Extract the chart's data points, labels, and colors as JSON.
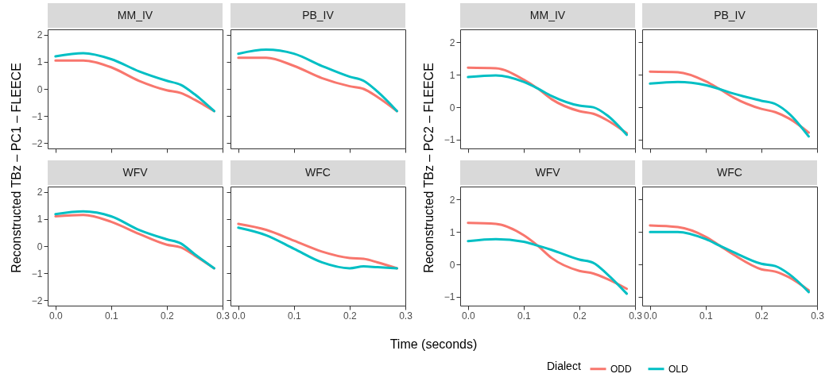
{
  "chart_data": [
    {
      "type": "line",
      "title": "MM_IV",
      "ylabel": "Reconstructed TBz – PC1 – FLEECE",
      "grid": false,
      "tick_labels": "y",
      "xlim": [
        -0.014,
        0.3
      ],
      "ylim": [
        -2.2,
        2.2
      ],
      "xticks": [
        0,
        0.1,
        0.2,
        0.3
      ],
      "yticks": [
        -2,
        -1,
        0,
        1,
        2
      ],
      "x": [
        0,
        0.05,
        0.1,
        0.15,
        0.2,
        0.225,
        0.25,
        0.285
      ],
      "series": [
        {
          "color": "#f8766d",
          "values": [
            1.05,
            1.05,
            0.8,
            0.3,
            -0.05,
            -0.15,
            -0.4,
            -0.82
          ]
        },
        {
          "color": "#00bfc4",
          "values": [
            1.2,
            1.32,
            1.1,
            0.65,
            0.3,
            0.15,
            -0.2,
            -0.82
          ]
        }
      ]
    },
    {
      "type": "line",
      "title": "PB_IV",
      "grid": false,
      "tick_labels": false,
      "xlim": [
        -0.014,
        0.3
      ],
      "ylim": [
        -2.2,
        2.2
      ],
      "xticks": [
        0,
        0.1,
        0.2,
        0.3
      ],
      "yticks": [
        -2,
        -1,
        0,
        1,
        2
      ],
      "x": [
        0,
        0.05,
        0.1,
        0.15,
        0.2,
        0.225,
        0.25,
        0.285
      ],
      "series": [
        {
          "color": "#f8766d",
          "values": [
            1.15,
            1.15,
            0.85,
            0.4,
            0.1,
            0.0,
            -0.3,
            -0.82
          ]
        },
        {
          "color": "#00bfc4",
          "values": [
            1.3,
            1.45,
            1.3,
            0.85,
            0.45,
            0.3,
            -0.1,
            -0.82
          ]
        }
      ]
    },
    {
      "type": "line",
      "title": "WFV",
      "grid": false,
      "xlim": [
        -0.014,
        0.3
      ],
      "ylim": [
        -2.2,
        2.2
      ],
      "xticks": [
        {
          "value": 0,
          "label": "0.0"
        },
        {
          "value": 0.1,
          "label": "0.1"
        },
        {
          "value": 0.2,
          "label": "0.2"
        },
        {
          "value": 0.3,
          "label": "0.3"
        }
      ],
      "yticks": [
        -2,
        -1,
        0,
        1,
        2
      ],
      "x": [
        0,
        0.05,
        0.1,
        0.15,
        0.2,
        0.225,
        0.25,
        0.285
      ],
      "series": [
        {
          "color": "#f8766d",
          "values": [
            1.1,
            1.15,
            0.9,
            0.45,
            0.05,
            -0.05,
            -0.35,
            -0.82
          ]
        },
        {
          "color": "#00bfc4",
          "values": [
            1.18,
            1.28,
            1.1,
            0.6,
            0.25,
            0.1,
            -0.3,
            -0.82
          ]
        }
      ]
    },
    {
      "type": "line",
      "title": "WFC",
      "xlabel": "Time (seconds)",
      "grid": false,
      "tick_labels": "x",
      "xlim": [
        -0.014,
        0.3
      ],
      "ylim": [
        -2.2,
        2.2
      ],
      "xticks": [
        {
          "value": 0,
          "label": "0.0"
        },
        {
          "value": 0.1,
          "label": "0.1"
        },
        {
          "value": 0.2,
          "label": "0.2"
        },
        {
          "value": 0.3,
          "label": "0.3"
        }
      ],
      "yticks": [
        -2,
        -1,
        0,
        1,
        2
      ],
      "x": [
        0,
        0.05,
        0.1,
        0.15,
        0.2,
        0.225,
        0.25,
        0.285
      ],
      "series": [
        {
          "color": "#f8766d",
          "values": [
            0.82,
            0.6,
            0.2,
            -0.2,
            -0.44,
            -0.47,
            -0.6,
            -0.82
          ]
        },
        {
          "color": "#00bfc4",
          "values": [
            0.68,
            0.4,
            -0.1,
            -0.6,
            -0.82,
            -0.75,
            -0.78,
            -0.82
          ]
        }
      ]
    },
    {
      "type": "line",
      "title": "MM_IV",
      "ylabel": "Reconstructed TBz – PC2 – FLEECE",
      "grid": false,
      "tick_labels": "y",
      "xlim": [
        -0.014,
        0.3
      ],
      "ylim": [
        -1.27,
        2.4
      ],
      "xticks": [
        0,
        0.1,
        0.2,
        0.3
      ],
      "yticks": [
        -1,
        0,
        1,
        2
      ],
      "x": [
        0,
        0.05,
        0.1,
        0.125,
        0.15,
        0.2,
        0.225,
        0.25,
        0.285
      ],
      "series": [
        {
          "color": "#f8766d",
          "values": [
            1.22,
            1.2,
            0.85,
            0.58,
            0.25,
            -0.12,
            -0.2,
            -0.4,
            -0.8
          ]
        },
        {
          "color": "#00bfc4",
          "values": [
            0.93,
            0.98,
            0.78,
            0.58,
            0.35,
            0.05,
            0.0,
            -0.25,
            -0.85
          ]
        }
      ]
    },
    {
      "type": "line",
      "title": "PB_IV",
      "grid": false,
      "tick_labels": false,
      "xlim": [
        -0.014,
        0.3
      ],
      "ylim": [
        -1.27,
        2.4
      ],
      "xticks": [
        0,
        0.1,
        0.2,
        0.3
      ],
      "yticks": [
        -1,
        0,
        1,
        2
      ],
      "x": [
        0,
        0.05,
        0.1,
        0.125,
        0.15,
        0.2,
        0.225,
        0.25,
        0.285
      ],
      "series": [
        {
          "color": "#f8766d",
          "values": [
            1.1,
            1.08,
            0.8,
            0.56,
            0.3,
            -0.05,
            -0.15,
            -0.35,
            -0.78
          ]
        },
        {
          "color": "#00bfc4",
          "values": [
            0.73,
            0.78,
            0.68,
            0.56,
            0.42,
            0.2,
            0.1,
            -0.2,
            -0.9
          ]
        }
      ]
    },
    {
      "type": "line",
      "title": "WFV",
      "grid": false,
      "xlim": [
        -0.014,
        0.3
      ],
      "ylim": [
        -1.27,
        2.4
      ],
      "xticks": [
        {
          "value": 0,
          "label": "0.0"
        },
        {
          "value": 0.1,
          "label": "0.1"
        },
        {
          "value": 0.2,
          "label": "0.2"
        },
        {
          "value": 0.3,
          "label": "0.3"
        }
      ],
      "yticks": [
        -1,
        0,
        1,
        2
      ],
      "x": [
        0,
        0.05,
        0.1,
        0.125,
        0.15,
        0.2,
        0.225,
        0.25,
        0.285
      ],
      "series": [
        {
          "color": "#f8766d",
          "values": [
            1.28,
            1.25,
            0.9,
            0.58,
            0.2,
            -0.2,
            -0.28,
            -0.45,
            -0.75
          ]
        },
        {
          "color": "#00bfc4",
          "values": [
            0.72,
            0.78,
            0.7,
            0.58,
            0.45,
            0.15,
            0.05,
            -0.3,
            -0.9
          ]
        }
      ]
    },
    {
      "type": "line",
      "title": "WFC",
      "legend": "bottom",
      "legend_title": "Dialect",
      "grid": false,
      "tick_labels": "x",
      "xlim": [
        -0.014,
        0.3
      ],
      "ylim": [
        -1.27,
        2.4
      ],
      "xticks": [
        {
          "value": 0,
          "label": "0.0"
        },
        {
          "value": 0.1,
          "label": "0.1"
        },
        {
          "value": 0.2,
          "label": "0.2"
        },
        {
          "value": 0.3,
          "label": "0.3"
        }
      ],
      "yticks": [
        -1,
        0,
        1,
        2
      ],
      "x": [
        0,
        0.05,
        0.1,
        0.125,
        0.15,
        0.2,
        0.225,
        0.25,
        0.285
      ],
      "series": [
        {
          "name": "ODD",
          "color": "#f8766d",
          "values": [
            1.2,
            1.15,
            0.85,
            0.58,
            0.3,
            -0.15,
            -0.22,
            -0.4,
            -0.8
          ]
        },
        {
          "name": "OLD",
          "color": "#00bfc4",
          "values": [
            1.0,
            1.0,
            0.78,
            0.58,
            0.38,
            0.02,
            -0.05,
            -0.3,
            -0.85
          ]
        }
      ]
    }
  ]
}
